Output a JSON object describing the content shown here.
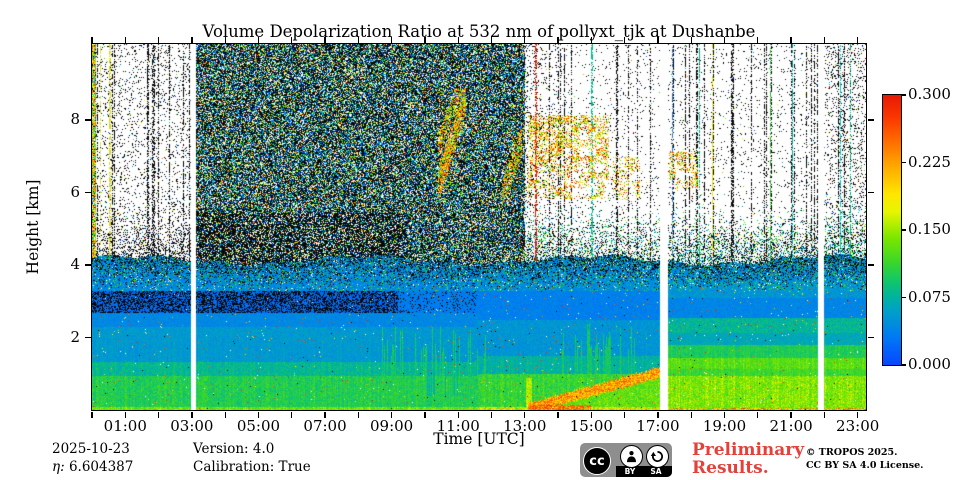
{
  "colors": {
    "preliminary_red": "#e5413b",
    "badge_gray": "#8e8e8e",
    "background": "#ffffff"
  },
  "footer": {
    "date": "2025-10-23",
    "eta_label": "η:",
    "eta_value": "6.604387",
    "version_label": "Version: 4.0",
    "calibration_label": "Calibration: True",
    "preliminary_line1": "Preliminary",
    "preliminary_line2": "Results.",
    "copyright_line1": "© TROPOS 2025.",
    "copyright_line2": "CC BY SA 4.0 License.",
    "license_badge": {
      "cc": "cc",
      "by": "BY",
      "sa": "SA"
    }
  },
  "chart_data": {
    "type": "heatmap",
    "title": "Volume Depolarization Ratio at 532 nm of pollyxt_tjk at Dushanbe",
    "xlabel": "Time [UTC]",
    "ylabel": "Height [km]",
    "x_range_hours": [
      0,
      23.25
    ],
    "x_tick_hours": [
      1,
      3,
      5,
      7,
      9,
      11,
      13,
      15,
      17,
      19,
      21,
      23
    ],
    "x_tick_labels": [
      "01:00",
      "03:00",
      "05:00",
      "07:00",
      "09:00",
      "11:00",
      "13:00",
      "15:00",
      "17:00",
      "19:00",
      "21:00",
      "23:00"
    ],
    "x_minor_tick_every_hours": 1,
    "y_range_km": [
      0,
      10.1
    ],
    "y_tick_values": [
      2,
      4,
      6,
      8
    ],
    "y_tick_labels": [
      "2",
      "4",
      "6",
      "8"
    ],
    "value_label": "Volume depolarization ratio at 532 nm",
    "value_range": [
      0.0,
      0.3
    ],
    "colorbar_tick_values": [
      0.0,
      0.075,
      0.15,
      0.225,
      0.3
    ],
    "colorbar_tick_labels": [
      "0.000",
      "0.075",
      "0.150",
      "0.225",
      "0.300"
    ],
    "legend_position": "right-colorbar",
    "grid": false,
    "colormap_stops": [
      [
        0.0,
        "#0846ff"
      ],
      [
        0.03,
        "#0078f5"
      ],
      [
        0.06,
        "#00a0c8"
      ],
      [
        0.075,
        "#00b2a0"
      ],
      [
        0.095,
        "#14c864"
      ],
      [
        0.115,
        "#3cd728"
      ],
      [
        0.14,
        "#78e600"
      ],
      [
        0.17,
        "#e6f500"
      ],
      [
        0.19,
        "#ffe600"
      ],
      [
        0.21,
        "#ffbe00"
      ],
      [
        0.225,
        "#ffa000"
      ],
      [
        0.25,
        "#ff6900"
      ],
      [
        0.275,
        "#fa3700"
      ],
      [
        0.3,
        "#e81905"
      ]
    ],
    "render": {
      "gaps_hours": [
        [
          2.95,
          3.1
        ],
        [
          17.06,
          17.28
        ],
        [
          21.8,
          21.97
        ]
      ],
      "noise_top_boundary_km": 4.15,
      "left_edge_hours": [
        0,
        0.1
      ],
      "sparse_zone1_hours": [
        0.1,
        2.95
      ],
      "dense_zone_hours": [
        3.1,
        13.0
      ],
      "dense_black_frac": 0.44,
      "dense_white_frac": 0.17,
      "dense_extra_black": {
        "t": [
          3.1,
          9.46
        ],
        "h": [
          4.1,
          5.45
        ],
        "black_frac": 0.62
      },
      "sparse1_dot_frac": 0.1,
      "sparse2_dot_frac": 0.045,
      "transition_boost_below_km": 5.5,
      "black_line_frac_sparse1": 0.17,
      "black_line_frac_sparse2": 0.1,
      "colored_lines": [
        {
          "t": 0.24,
          "color": "#e0e040"
        },
        {
          "t": 0.53,
          "color": "#d8d820"
        },
        {
          "t": 13.32,
          "color": "#d42000"
        },
        {
          "t": 15.01,
          "color": "#00b890"
        },
        {
          "t": 17.42,
          "color": "#2878d8"
        },
        {
          "t": 18.23,
          "color": "#00a884"
        },
        {
          "t": 18.62,
          "color": "#e8e800"
        },
        {
          "t": 20.36,
          "color": "#28b828"
        },
        {
          "t": 21.03,
          "color": "#00a8a0"
        },
        {
          "t": 22.47,
          "color": "#00c8c8"
        },
        {
          "t": 22.77,
          "color": "#00a878"
        }
      ],
      "clouds": [
        {
          "t": [
            10.37,
            11.23
          ],
          "h": [
            5.9,
            8.9
          ],
          "mode": "arc",
          "h0": 6.1,
          "slope": 3.0,
          "half": 0.45,
          "density": 0.42
        },
        {
          "t": [
            10.37,
            11.23
          ],
          "h": [
            5.9,
            8.9
          ],
          "mode": "arc",
          "h0": 7.3,
          "slope": 2.4,
          "half": 0.3,
          "density": 0.3
        },
        {
          "t": [
            12.29,
            12.89
          ],
          "h": [
            5.7,
            7.8
          ],
          "mode": "arc",
          "h0": 5.9,
          "slope": 2.6,
          "half": 0.4,
          "density": 0.3
        },
        {
          "t": [
            13.07,
            15.53
          ],
          "h": [
            5.85,
            8.15
          ],
          "mode": "clump",
          "density": 0.3
        },
        {
          "t": [
            15.63,
            16.45
          ],
          "h": [
            5.8,
            7.0
          ],
          "mode": "clump",
          "density": 0.22
        },
        {
          "t": [
            17.33,
            18.18
          ],
          "h": [
            6.1,
            7.15
          ],
          "mode": "clump",
          "density": 0.26
        }
      ],
      "cloud_value_range": [
        0.12,
        0.3
      ],
      "regimes": [
        {
          "t": [
            0,
            11.58
          ],
          "bands": [
            {
              "h": [
                0,
                0.09
              ],
              "v": 0.135,
              "j": 0.02
            },
            {
              "h": [
                0.09,
                0.95
              ],
              "v": 0.102,
              "j": 0.018
            },
            {
              "h": [
                0.95,
                1.35
              ],
              "v": 0.08,
              "j": 0.016
            },
            {
              "h": [
                1.35,
                2.3
              ],
              "v": 0.055,
              "j": 0.012
            },
            {
              "h": [
                2.3,
                2.7
              ],
              "v": 0.042,
              "j": 0.01
            },
            {
              "h": [
                2.7,
                3.3
              ],
              "v": 0.024,
              "j": 0.014,
              "black_mix": 0.48
            },
            {
              "h": [
                3.3,
                10.2
              ],
              "v": 0.042,
              "j": 0.012
            }
          ]
        },
        {
          "t": [
            11.58,
            17.06
          ],
          "bands": [
            {
              "h": [
                0,
                0.1
              ],
              "v": 0.17,
              "j": 0.05
            },
            {
              "h": [
                0.1,
                1.0
              ],
              "v": 0.112,
              "j": 0.02
            },
            {
              "h": [
                1.0,
                1.5
              ],
              "v": 0.075,
              "j": 0.016
            },
            {
              "h": [
                1.5,
                2.5
              ],
              "v": 0.052,
              "j": 0.012
            },
            {
              "h": [
                2.5,
                3.3
              ],
              "v": 0.036,
              "j": 0.01
            },
            {
              "h": [
                3.3,
                10.2
              ],
              "v": 0.045,
              "j": 0.012
            }
          ]
        },
        {
          "t": [
            17.06,
            23.25
          ],
          "bands": [
            {
              "h": [
                0,
                0.06
              ],
              "v": 0.16,
              "j": 0.06,
              "hot_frac": 0.3
            },
            {
              "h": [
                0.06,
                0.95
              ],
              "v": 0.142,
              "j": 0.022
            },
            {
              "h": [
                0.95,
                1.15
              ],
              "v": 0.115,
              "j": 0.015
            },
            {
              "h": [
                1.15,
                1.45
              ],
              "v": 0.128,
              "j": 0.015
            },
            {
              "h": [
                1.45,
                1.8
              ],
              "v": 0.1,
              "j": 0.015
            },
            {
              "h": [
                1.8,
                2.15
              ],
              "v": 0.066,
              "j": 0.012
            },
            {
              "h": [
                2.15,
                2.55
              ],
              "v": 0.078,
              "j": 0.018
            },
            {
              "h": [
                2.55,
                3.1
              ],
              "v": 0.04,
              "j": 0.01
            },
            {
              "h": [
                3.1,
                3.55
              ],
              "v": 0.052,
              "j": 0.015
            },
            {
              "h": [
                3.55,
                10.2
              ],
              "v": 0.046,
              "j": 0.014
            }
          ]
        }
      ],
      "dark_band_hours": [
        0,
        9.17
      ],
      "plume": {
        "t": [
          13.09,
          17.06
        ],
        "h_start": 0.06,
        "rise_km_per_h": 0.25,
        "half_width_km": 0.13,
        "v": 0.225,
        "j": 0.045
      },
      "plume_wall": {
        "t": [
          13.03,
          13.21
        ],
        "h_top": 0.9,
        "v": 0.155
      },
      "hot_strip": {
        "t": [
          13.07,
          14.96
        ],
        "h_top": 0.15,
        "v": 0.25,
        "j": 0.035
      },
      "bottom_red_line": {
        "t": [
          14.9,
          19.5
        ],
        "h_top": 0.05
      },
      "green_plumes": [
        {
          "t": [
            8.68,
            11.87
          ],
          "frac": 0.3,
          "top_min": 1.5,
          "top_max": 2.35,
          "v": 0.095
        },
        {
          "t": [
            14.0,
            16.3
          ],
          "frac": 0.3,
          "top_min": 1.6,
          "top_max": 2.4,
          "v": 0.095
        }
      ],
      "teal_streaks": {
        "t": [
          9.94,
          11.38
        ],
        "h": [
          0.4,
          1.3
        ]
      },
      "speck_frac_aerosol": 0.012
    }
  }
}
